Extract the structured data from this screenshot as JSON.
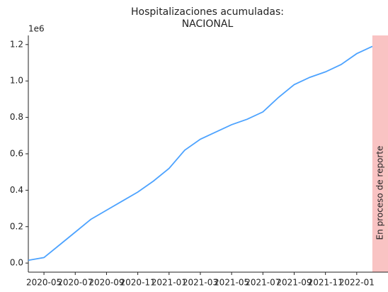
{
  "chart_data": {
    "type": "line",
    "title": [
      "Hospitalizaciones acumuladas:",
      "NACIONAL"
    ],
    "x": [
      "2020-04",
      "2020-05",
      "2020-06",
      "2020-07",
      "2020-08",
      "2020-09",
      "2020-10",
      "2020-11",
      "2020-12",
      "2021-01",
      "2021-02",
      "2021-03",
      "2021-04",
      "2021-05",
      "2021-06",
      "2021-07",
      "2021-08",
      "2021-09",
      "2021-10",
      "2021-11",
      "2021-12",
      "2022-01",
      "2022-02"
    ],
    "series": [
      {
        "color": "#4da3ff",
        "values": [
          15000,
          30000,
          100000,
          170000,
          240000,
          290000,
          340000,
          390000,
          450000,
          520000,
          620000,
          680000,
          720000,
          760000,
          790000,
          830000,
          910000,
          980000,
          1020000,
          1050000,
          1090000,
          1150000,
          1190000
        ]
      }
    ],
    "xlim": [
      "2020-04",
      "2022-03"
    ],
    "xticks": [
      "2020-05",
      "2020-07",
      "2020-09",
      "2020-11",
      "2021-01",
      "2021-03",
      "2021-05",
      "2021-07",
      "2021-09",
      "2021-11",
      "2022-01"
    ],
    "ylim": [
      -50000,
      1250000
    ],
    "yticks": [
      {
        "value": 0,
        "label": "0.0"
      },
      {
        "value": 200000,
        "label": "0.2"
      },
      {
        "value": 400000,
        "label": "0.4"
      },
      {
        "value": 600000,
        "label": "0.6"
      },
      {
        "value": 800000,
        "label": "0.8"
      },
      {
        "value": 1000000,
        "label": "1.0"
      },
      {
        "value": 1200000,
        "label": "1.2"
      }
    ],
    "y_offset_label": "1e6",
    "shade": {
      "x": [
        "2022-02",
        "2022-03"
      ],
      "label": "En proceso de reporte",
      "color": "#f7b4b4"
    }
  }
}
